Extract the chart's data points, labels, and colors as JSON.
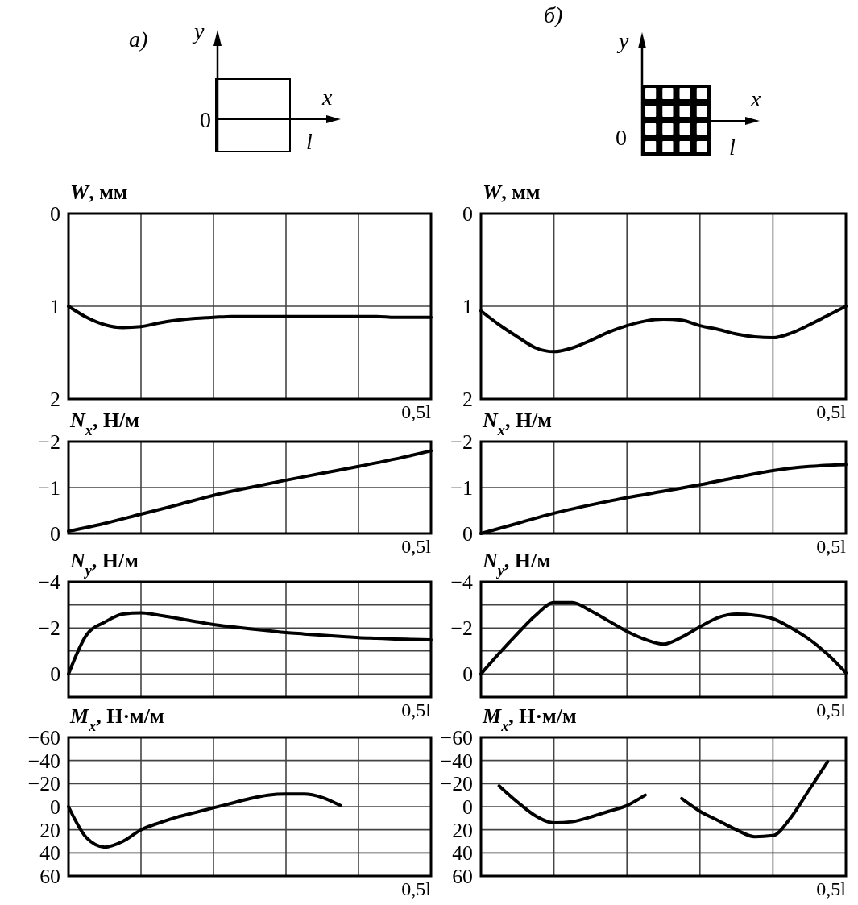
{
  "chart_data": [
    {
      "type": "other",
      "title": "а)",
      "annotations": [
        "y",
        "x",
        "0",
        "l"
      ]
    },
    {
      "type": "other",
      "title": "б)",
      "annotations": [
        "y",
        "x",
        "0",
        "l"
      ]
    },
    {
      "type": "line",
      "ylabel": "W, мм",
      "xlabel": "0,5l",
      "categories": [
        null,
        null,
        null,
        null,
        null,
        null,
        null,
        null,
        null,
        null,
        null,
        null,
        null,
        null,
        null,
        null,
        null,
        null,
        null,
        null,
        null
      ],
      "ylim": [
        2,
        0
      ],
      "yticks": [
        0,
        1,
        2
      ],
      "grid": true,
      "series": [
        {
          "color": "#000000",
          "values": [
            1.0,
            1.12,
            1.2,
            1.23,
            1.22,
            1.18,
            1.15,
            1.13,
            1.12,
            1.11,
            1.11,
            1.11,
            1.11,
            1.11,
            1.11,
            1.11,
            1.11,
            1.11,
            1.12,
            1.12,
            1.12
          ]
        }
      ]
    },
    {
      "type": "line",
      "ylabel": "W, мм",
      "xlabel": "0,5l",
      "categories": [
        null,
        null,
        null,
        null,
        null,
        null,
        null,
        null,
        null,
        null,
        null,
        null,
        null,
        null,
        null,
        null,
        null,
        null,
        null,
        null,
        null
      ],
      "ylim": [
        2,
        0
      ],
      "yticks": [
        0,
        1,
        2
      ],
      "grid": true,
      "series": [
        {
          "color": "#000000",
          "values": [
            1.05,
            1.2,
            1.33,
            1.45,
            1.49,
            1.45,
            1.37,
            1.28,
            1.21,
            1.16,
            1.14,
            1.15,
            1.21,
            1.25,
            1.3,
            1.33,
            1.34,
            1.29,
            1.2,
            1.1,
            1.0
          ]
        }
      ]
    },
    {
      "type": "line",
      "ylabel": "N$_{x}$, Н/м",
      "xlabel": "0,5l",
      "categories": [
        null,
        null,
        null,
        null,
        null,
        null,
        null,
        null,
        null,
        null,
        null
      ],
      "ylim": [
        0,
        -2
      ],
      "yticks": [
        0,
        -1,
        -2
      ],
      "grid": true,
      "series": [
        {
          "color": "#000000",
          "values": [
            -0.05,
            -0.22,
            -0.42,
            -0.62,
            -0.83,
            -1.0,
            -1.16,
            -1.31,
            -1.46,
            -1.62,
            -1.8
          ]
        }
      ]
    },
    {
      "type": "line",
      "ylabel": "N$_{x}$, Н/м",
      "xlabel": "0,5l",
      "categories": [
        null,
        null,
        null,
        null,
        null,
        null,
        null,
        null,
        null,
        null,
        null
      ],
      "ylim": [
        0,
        -2
      ],
      "yticks": [
        0,
        -1,
        -2
      ],
      "grid": true,
      "series": [
        {
          "color": "#000000",
          "values": [
            0,
            -0.22,
            -0.44,
            -0.62,
            -0.78,
            -0.92,
            -1.06,
            -1.22,
            -1.37,
            -1.46,
            -1.5
          ]
        }
      ]
    },
    {
      "type": "line",
      "ylabel": "N$_{y}$, Н/м",
      "xlabel": "0,5l",
      "categories": [
        null,
        null,
        null,
        null,
        null,
        null,
        null,
        null,
        null,
        null,
        null,
        null,
        null,
        null,
        null,
        null,
        null,
        null,
        null,
        null,
        null
      ],
      "ylim": [
        1,
        -4
      ],
      "yticks": [
        {
          "value": 1,
          "label": null
        },
        0,
        {
          "value": -1,
          "label": null
        },
        -2,
        {
          "value": -3,
          "label": null
        },
        -4
      ],
      "grid": true,
      "series": [
        {
          "color": "#000000",
          "values": [
            0,
            -1.7,
            -2.25,
            -2.6,
            -2.65,
            -2.55,
            -2.42,
            -2.28,
            -2.15,
            -2.05,
            -1.96,
            -1.88,
            -1.8,
            -1.74,
            -1.68,
            -1.63,
            -1.58,
            -1.55,
            -1.52,
            -1.5,
            -1.48
          ]
        }
      ]
    },
    {
      "type": "line",
      "ylabel": "N$_{y}$, Н/м",
      "xlabel": "0,5l",
      "categories": [
        null,
        null,
        null,
        null,
        null,
        null,
        null,
        null,
        null,
        null,
        null,
        null,
        null,
        null,
        null,
        null,
        null,
        null,
        null,
        null,
        null
      ],
      "ylim": [
        1,
        -4
      ],
      "yticks": [
        {
          "value": 1,
          "label": null
        },
        0,
        {
          "value": -1,
          "label": null
        },
        -2,
        {
          "value": -3,
          "label": null
        },
        -4
      ],
      "grid": true,
      "series": [
        {
          "color": "#000000",
          "values": [
            0,
            -0.9,
            -1.75,
            -2.55,
            -3.1,
            -3.1,
            -2.75,
            -2.3,
            -1.85,
            -1.5,
            -1.3,
            -1.6,
            -2.05,
            -2.45,
            -2.6,
            -2.55,
            -2.4,
            -2.0,
            -1.5,
            -0.85,
            -0.05
          ]
        }
      ]
    },
    {
      "type": "line",
      "ylabel": "M$_{x}$, Н·м/м",
      "xlabel": "0,5l",
      "categories": [
        null,
        null,
        null,
        null,
        null,
        null,
        null,
        null,
        null,
        null,
        null,
        null,
        null,
        null,
        null,
        null,
        null,
        null,
        null,
        null,
        null
      ],
      "ylim": [
        60,
        -60
      ],
      "yticks": [
        60,
        40,
        20,
        0,
        -20,
        -40,
        -60
      ],
      "grid": true,
      "series": [
        {
          "color": "#000000",
          "values": [
            0,
            27,
            35,
            30,
            20,
            14,
            9,
            5,
            1,
            -3,
            -7,
            -10,
            -11,
            -11,
            -8,
            -1,
            null,
            null,
            null,
            null,
            null
          ]
        }
      ]
    },
    {
      "type": "line",
      "ylabel": "M$_{x}$, Н·м/м",
      "xlabel": "0,5l",
      "categories": [
        null,
        null,
        null,
        null,
        null,
        null,
        null,
        null,
        null,
        null,
        null,
        null,
        null,
        null,
        null,
        null,
        null,
        null,
        null,
        null,
        null
      ],
      "ylim": [
        60,
        -60
      ],
      "yticks": [
        60,
        40,
        20,
        0,
        -20,
        -40,
        -60
      ],
      "grid": true,
      "series": [
        {
          "color": "#000000",
          "values": [
            null,
            -18,
            -4,
            8,
            14,
            13,
            9,
            4,
            -1,
            -10,
            null,
            -7,
            4,
            12,
            20,
            26,
            25,
            9,
            -15,
            -39,
            null
          ]
        }
      ]
    }
  ]
}
